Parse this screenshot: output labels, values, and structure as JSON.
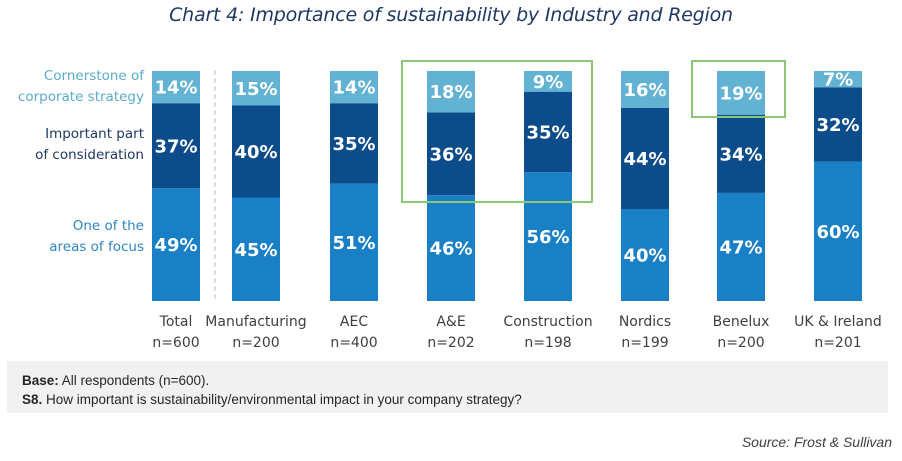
{
  "chart_data": {
    "type": "bar",
    "stacked": true,
    "title": "Chart 4: Importance of sustainability by Industry and Region",
    "categories": [
      "Total",
      "Manufacturing",
      "AEC",
      "A&E",
      "Construction",
      "Nordics",
      "Benelux",
      "UK & Ireland"
    ],
    "sample_sizes": [
      "n=600",
      "n=200",
      "n=400",
      "n=202",
      "n=198",
      "n=199",
      "n=200",
      "n=201"
    ],
    "series": [
      {
        "name": "One of the areas of focus",
        "color": "#1a80c6",
        "values": [
          49,
          45,
          51,
          46,
          56,
          40,
          47,
          60
        ],
        "labels": [
          "49%",
          "45%",
          "51%",
          "46%",
          "56%",
          "40%",
          "47%",
          "60%"
        ]
      },
      {
        "name": "Important part of consideration",
        "color": "#0c4c8a",
        "values": [
          37,
          40,
          35,
          36,
          35,
          44,
          34,
          32
        ],
        "labels": [
          "37%",
          "40%",
          "35%",
          "36%",
          "35%",
          "44%",
          "34%",
          "32%"
        ]
      },
      {
        "name": "Cornerstone of corporate strategy",
        "color": "#62b3d3",
        "values": [
          14,
          15,
          14,
          18,
          9,
          16,
          19,
          7
        ],
        "labels": [
          "14%",
          "15%",
          "14%",
          "18%",
          "9%",
          "16%",
          "19%",
          "7%"
        ]
      }
    ],
    "legend": [
      {
        "lines": [
          "Cornerstone of",
          "corporate strategy"
        ],
        "color": "#5aaccb"
      },
      {
        "lines": [
          "Important part",
          "of consideration"
        ],
        "color": "#1f3864"
      },
      {
        "lines": [
          "One of the",
          "areas of focus"
        ],
        "color": "#2e86c1"
      }
    ],
    "legend_placement": "left",
    "ylim": [
      0,
      100
    ],
    "grid": false,
    "highlights": [
      {
        "categories": [
          "A&E",
          "Construction"
        ],
        "series": [
          "Important part of consideration",
          "Cornerstone of corporate strategy"
        ],
        "color": "#8cc775"
      },
      {
        "categories": [
          "Benelux"
        ],
        "series": [
          "Cornerstone of corporate strategy"
        ],
        "color": "#8cc775"
      }
    ],
    "separator_after": "Total"
  },
  "notes": {
    "base_label": "Base:",
    "base_text": " All respondents (n=600).",
    "question_label": "S8.",
    "question_text": " How important is sustainability/environmental impact in your company strategy?"
  },
  "source": "Source: Frost & Sullivan"
}
